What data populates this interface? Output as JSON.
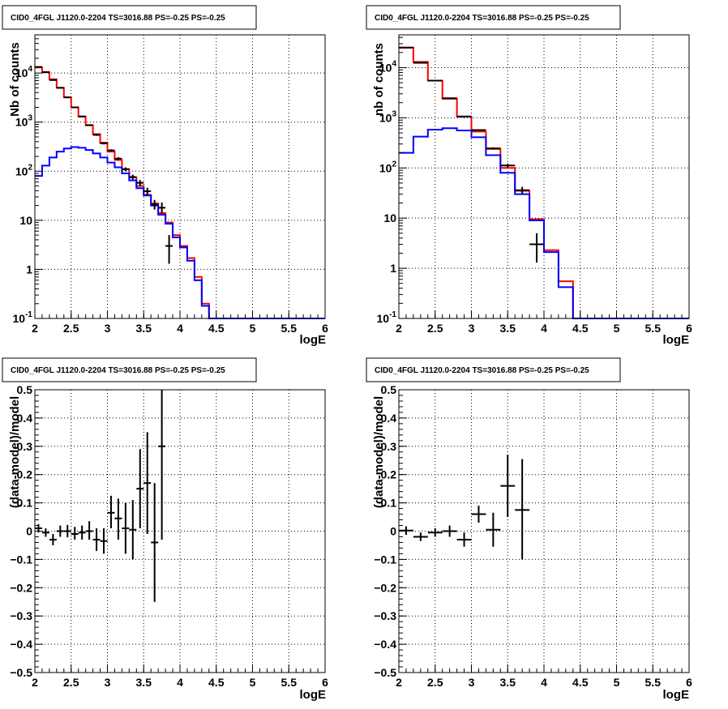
{
  "chart_data": [
    {
      "type": "histogram",
      "title": "CID0_4FGL J1120.0-2204 TS=3016.88 PS=-0.25 PS=-0.25",
      "xlabel": "logE",
      "ylabel": "Nb of counts",
      "xlim": [
        2,
        6
      ],
      "ylim": [
        0.1,
        60000
      ],
      "log_y": true,
      "grid": true,
      "xticks": [
        "2",
        "2.5",
        "3",
        "3.5",
        "4",
        "4.5",
        "5",
        "5.5",
        "6"
      ],
      "yticks": [
        {
          "v": 0.1,
          "label": "10^-1"
        },
        {
          "v": 1,
          "label": "1"
        },
        {
          "v": 10,
          "label": "10"
        },
        {
          "v": 100,
          "label": "10^2"
        },
        {
          "v": 1000,
          "label": "10^3"
        },
        {
          "v": 10000,
          "label": "10^4"
        }
      ],
      "bin_edges": [
        2.0,
        2.1,
        2.2,
        2.3,
        2.4,
        2.5,
        2.6,
        2.7,
        2.8,
        2.9,
        3.0,
        3.1,
        3.2,
        3.3,
        3.4,
        3.5,
        3.6,
        3.7,
        3.8,
        3.9,
        4.0,
        4.1,
        4.2,
        4.3,
        4.4,
        4.5,
        4.6,
        4.7,
        4.8,
        4.9,
        5.0,
        5.1,
        5.2,
        5.3,
        5.4,
        5.5,
        5.6,
        5.7,
        5.8,
        5.9,
        6.0
      ],
      "series": [
        {
          "color": "#ff0000",
          "values": [
            13000,
            10500,
            7500,
            5000,
            3200,
            2000,
            1300,
            860,
            570,
            380,
            250,
            170,
            110,
            75,
            50,
            33,
            22,
            14,
            9,
            5,
            3,
            1.7,
            0.7,
            0.2,
            0.1,
            0.1,
            0.1,
            0.1,
            0.1,
            0.1,
            0.1,
            0.1,
            0.1,
            0.1,
            0.1,
            0.1,
            0.1,
            0.1,
            0.1,
            0.1
          ]
        },
        {
          "color": "#0000ff",
          "values": [
            80,
            130,
            190,
            250,
            290,
            310,
            300,
            270,
            230,
            190,
            150,
            120,
            90,
            65,
            45,
            32,
            20,
            13,
            8.5,
            4.5,
            2.8,
            1.5,
            0.6,
            0.18,
            0.1,
            0.1,
            0.1,
            0.1,
            0.1,
            0.1,
            0.1,
            0.1,
            0.1,
            0.1,
            0.1,
            0.1,
            0.1,
            0.1,
            0.1,
            0.1
          ]
        }
      ],
      "points": [
        {
          "x": 2.05,
          "xerr": 0.05,
          "y": 13300,
          "ylo": 13000,
          "yhi": 13600
        },
        {
          "x": 2.15,
          "xerr": 0.05,
          "y": 10400,
          "ylo": 10200,
          "yhi": 10600
        },
        {
          "x": 2.25,
          "xerr": 0.05,
          "y": 7200,
          "ylo": 7000,
          "yhi": 7400
        },
        {
          "x": 2.35,
          "xerr": 0.05,
          "y": 5000,
          "ylo": 4880,
          "yhi": 5120
        },
        {
          "x": 2.45,
          "xerr": 0.05,
          "y": 3200,
          "ylo": 3120,
          "yhi": 3280
        },
        {
          "x": 2.55,
          "xerr": 0.05,
          "y": 2000,
          "ylo": 1950,
          "yhi": 2050
        },
        {
          "x": 2.65,
          "xerr": 0.05,
          "y": 1300,
          "ylo": 1260,
          "yhi": 1340
        },
        {
          "x": 2.75,
          "xerr": 0.05,
          "y": 870,
          "ylo": 840,
          "yhi": 900
        },
        {
          "x": 2.85,
          "xerr": 0.05,
          "y": 550,
          "ylo": 525,
          "yhi": 575
        },
        {
          "x": 2.95,
          "xerr": 0.05,
          "y": 370,
          "ylo": 350,
          "yhi": 390
        },
        {
          "x": 3.05,
          "xerr": 0.05,
          "y": 265,
          "ylo": 250,
          "yhi": 280
        },
        {
          "x": 3.15,
          "xerr": 0.05,
          "y": 180,
          "ylo": 167,
          "yhi": 193
        },
        {
          "x": 3.25,
          "xerr": 0.05,
          "y": 110,
          "ylo": 100,
          "yhi": 120
        },
        {
          "x": 3.35,
          "xerr": 0.05,
          "y": 76,
          "ylo": 68,
          "yhi": 85
        },
        {
          "x": 3.45,
          "xerr": 0.05,
          "y": 58,
          "ylo": 50,
          "yhi": 66
        },
        {
          "x": 3.55,
          "xerr": 0.05,
          "y": 39,
          "ylo": 33,
          "yhi": 46
        },
        {
          "x": 3.65,
          "xerr": 0.05,
          "y": 21,
          "ylo": 16.5,
          "yhi": 26
        },
        {
          "x": 3.75,
          "xerr": 0.05,
          "y": 18,
          "ylo": 14,
          "yhi": 23
        },
        {
          "x": 3.85,
          "xerr": 0.05,
          "y": 3,
          "ylo": 1.3,
          "yhi": 5
        }
      ]
    },
    {
      "type": "histogram",
      "title": "CID0_4FGL J1120.0-2204 TS=3016.88 PS=-0.25 PS=-0.25",
      "xlabel": "logE",
      "ylabel": "nb of counts",
      "xlim": [
        2,
        6
      ],
      "ylim": [
        0.1,
        45000
      ],
      "log_y": true,
      "grid": true,
      "xticks": [
        "2",
        "2.5",
        "3",
        "3.5",
        "4",
        "4.5",
        "5",
        "5.5",
        "6"
      ],
      "yticks": [
        {
          "v": 0.1,
          "label": "10^-1"
        },
        {
          "v": 1,
          "label": "1"
        },
        {
          "v": 10,
          "label": "10"
        },
        {
          "v": 100,
          "label": "10^2"
        },
        {
          "v": 1000,
          "label": "10^3"
        },
        {
          "v": 10000,
          "label": "10^4"
        }
      ],
      "bin_edges": [
        2.0,
        2.2,
        2.4,
        2.6,
        2.8,
        3.0,
        3.2,
        3.4,
        3.6,
        3.8,
        4.0,
        4.2,
        4.4,
        4.6,
        4.8,
        5.0,
        5.2,
        5.4,
        5.6,
        5.8,
        6.0
      ],
      "series": [
        {
          "color": "#ff0000",
          "values": [
            25000,
            13000,
            5500,
            2400,
            1050,
            530,
            240,
            100,
            35,
            9.5,
            2.3,
            0.55,
            0.1,
            0.1,
            0.1,
            0.1,
            0.1,
            0.1,
            0.1,
            0.1
          ]
        },
        {
          "color": "#0000ff",
          "values": [
            200,
            420,
            580,
            620,
            560,
            410,
            180,
            80,
            30,
            9,
            2.1,
            0.42,
            0.1,
            0.1,
            0.1,
            0.1,
            0.1,
            0.1,
            0.1,
            0.1
          ]
        }
      ],
      "points": [
        {
          "x": 2.1,
          "xerr": 0.1,
          "y": 25000,
          "ylo": 24700,
          "yhi": 25300
        },
        {
          "x": 2.3,
          "xerr": 0.1,
          "y": 12500,
          "ylo": 12300,
          "yhi": 12700
        },
        {
          "x": 2.5,
          "xerr": 0.1,
          "y": 5500,
          "ylo": 5400,
          "yhi": 5600
        },
        {
          "x": 2.7,
          "xerr": 0.1,
          "y": 2450,
          "ylo": 2400,
          "yhi": 2500
        },
        {
          "x": 2.9,
          "xerr": 0.1,
          "y": 1060,
          "ylo": 1030,
          "yhi": 1090
        },
        {
          "x": 3.1,
          "xerr": 0.1,
          "y": 570,
          "ylo": 548,
          "yhi": 592
        },
        {
          "x": 3.3,
          "xerr": 0.1,
          "y": 245,
          "ylo": 232,
          "yhi": 258
        },
        {
          "x": 3.5,
          "xerr": 0.1,
          "y": 112,
          "ylo": 102,
          "yhi": 122
        },
        {
          "x": 3.7,
          "xerr": 0.1,
          "y": 36,
          "ylo": 31,
          "yhi": 42
        },
        {
          "x": 3.9,
          "xerr": 0.1,
          "y": 3,
          "ylo": 1.3,
          "yhi": 5
        }
      ]
    },
    {
      "type": "scatter",
      "title": "CID0_4FGL J1120.0-2204 TS=3016.88 PS=-0.25 PS=-0.25",
      "xlabel": "logE",
      "ylabel": "(data-model)/model",
      "xlim": [
        2,
        6
      ],
      "ylim": [
        -0.5,
        0.5
      ],
      "log_y": false,
      "grid": true,
      "xticks": [
        "2",
        "2.5",
        "3",
        "3.5",
        "4",
        "4.5",
        "5",
        "5.5",
        "6"
      ],
      "yticks": [
        {
          "v": -0.5,
          "label": "−0.5"
        },
        {
          "v": -0.4,
          "label": "−0.4"
        },
        {
          "v": -0.3,
          "label": "−0.3"
        },
        {
          "v": -0.2,
          "label": "−0.2"
        },
        {
          "v": -0.1,
          "label": "−0.1"
        },
        {
          "v": 0,
          "label": "0"
        },
        {
          "v": 0.1,
          "label": "0.1"
        },
        {
          "v": 0.2,
          "label": "0.2"
        },
        {
          "v": 0.3,
          "label": "0.3"
        },
        {
          "v": 0.4,
          "label": "0.4"
        },
        {
          "v": 0.5,
          "label": "0.5"
        }
      ],
      "points": [
        {
          "x": 2.05,
          "xerr": 0.05,
          "y": 0.01,
          "ylo": -0.005,
          "yhi": 0.025
        },
        {
          "x": 2.15,
          "xerr": 0.05,
          "y": -0.005,
          "ylo": -0.02,
          "yhi": 0.01
        },
        {
          "x": 2.25,
          "xerr": 0.05,
          "y": -0.03,
          "ylo": -0.05,
          "yhi": -0.01
        },
        {
          "x": 2.35,
          "xerr": 0.05,
          "y": 0.0,
          "ylo": -0.02,
          "yhi": 0.02
        },
        {
          "x": 2.45,
          "xerr": 0.05,
          "y": 0.0,
          "ylo": -0.022,
          "yhi": 0.022
        },
        {
          "x": 2.55,
          "xerr": 0.05,
          "y": -0.01,
          "ylo": -0.03,
          "yhi": 0.015
        },
        {
          "x": 2.65,
          "xerr": 0.05,
          "y": -0.005,
          "ylo": -0.03,
          "yhi": 0.02
        },
        {
          "x": 2.75,
          "xerr": 0.05,
          "y": 0.0,
          "ylo": -0.03,
          "yhi": 0.035
        },
        {
          "x": 2.85,
          "xerr": 0.05,
          "y": -0.03,
          "ylo": -0.07,
          "yhi": 0.01
        },
        {
          "x": 2.95,
          "xerr": 0.05,
          "y": -0.035,
          "ylo": -0.08,
          "yhi": 0.01
        },
        {
          "x": 3.05,
          "xerr": 0.05,
          "y": 0.065,
          "ylo": 0.01,
          "yhi": 0.125
        },
        {
          "x": 3.15,
          "xerr": 0.05,
          "y": 0.045,
          "ylo": -0.03,
          "yhi": 0.115
        },
        {
          "x": 3.25,
          "xerr": 0.05,
          "y": 0.01,
          "ylo": -0.08,
          "yhi": 0.1
        },
        {
          "x": 3.35,
          "xerr": 0.05,
          "y": 0.005,
          "ylo": -0.1,
          "yhi": 0.11
        },
        {
          "x": 3.45,
          "xerr": 0.05,
          "y": 0.15,
          "ylo": 0.01,
          "yhi": 0.29
        },
        {
          "x": 3.55,
          "xerr": 0.05,
          "y": 0.17,
          "ylo": -0.01,
          "yhi": 0.35
        },
        {
          "x": 3.65,
          "xerr": 0.05,
          "y": -0.04,
          "ylo": -0.25,
          "yhi": 0.17
        },
        {
          "x": 3.75,
          "xerr": 0.05,
          "y": 0.3,
          "ylo": -0.03,
          "yhi": 0.5
        }
      ]
    },
    {
      "type": "scatter",
      "title": "CID0_4FGL J1120.0-2204 TS=3016.88 PS=-0.25 PS=-0.25",
      "xlabel": "logE",
      "ylabel": "(data-model)/model",
      "xlim": [
        2,
        6
      ],
      "ylim": [
        -0.5,
        0.5
      ],
      "log_y": false,
      "grid": true,
      "xticks": [
        "2",
        "2.5",
        "3",
        "3.5",
        "4",
        "4.5",
        "5",
        "5.5",
        "6"
      ],
      "yticks": [
        {
          "v": -0.5,
          "label": "−0.5"
        },
        {
          "v": -0.4,
          "label": "−0.4"
        },
        {
          "v": -0.3,
          "label": "−0.3"
        },
        {
          "v": -0.2,
          "label": "−0.2"
        },
        {
          "v": -0.1,
          "label": "−0.1"
        },
        {
          "v": 0,
          "label": "0"
        },
        {
          "v": 0.1,
          "label": "0.1"
        },
        {
          "v": 0.2,
          "label": "0.2"
        },
        {
          "v": 0.3,
          "label": "0.3"
        },
        {
          "v": 0.4,
          "label": "0.4"
        },
        {
          "v": 0.5,
          "label": "0.5"
        }
      ],
      "points": [
        {
          "x": 2.1,
          "xerr": 0.1,
          "y": 0.002,
          "ylo": -0.013,
          "yhi": 0.017
        },
        {
          "x": 2.3,
          "xerr": 0.1,
          "y": -0.02,
          "ylo": -0.035,
          "yhi": -0.005
        },
        {
          "x": 2.5,
          "xerr": 0.1,
          "y": -0.005,
          "ylo": -0.02,
          "yhi": 0.01
        },
        {
          "x": 2.7,
          "xerr": 0.1,
          "y": 0.0,
          "ylo": -0.02,
          "yhi": 0.02
        },
        {
          "x": 2.9,
          "xerr": 0.1,
          "y": -0.03,
          "ylo": -0.055,
          "yhi": -0.005
        },
        {
          "x": 3.1,
          "xerr": 0.1,
          "y": 0.06,
          "ylo": 0.03,
          "yhi": 0.09
        },
        {
          "x": 3.3,
          "xerr": 0.1,
          "y": 0.005,
          "ylo": -0.055,
          "yhi": 0.065
        },
        {
          "x": 3.5,
          "xerr": 0.1,
          "y": 0.16,
          "ylo": 0.05,
          "yhi": 0.27
        },
        {
          "x": 3.7,
          "xerr": 0.1,
          "y": 0.075,
          "ylo": -0.1,
          "yhi": 0.255
        }
      ]
    }
  ]
}
